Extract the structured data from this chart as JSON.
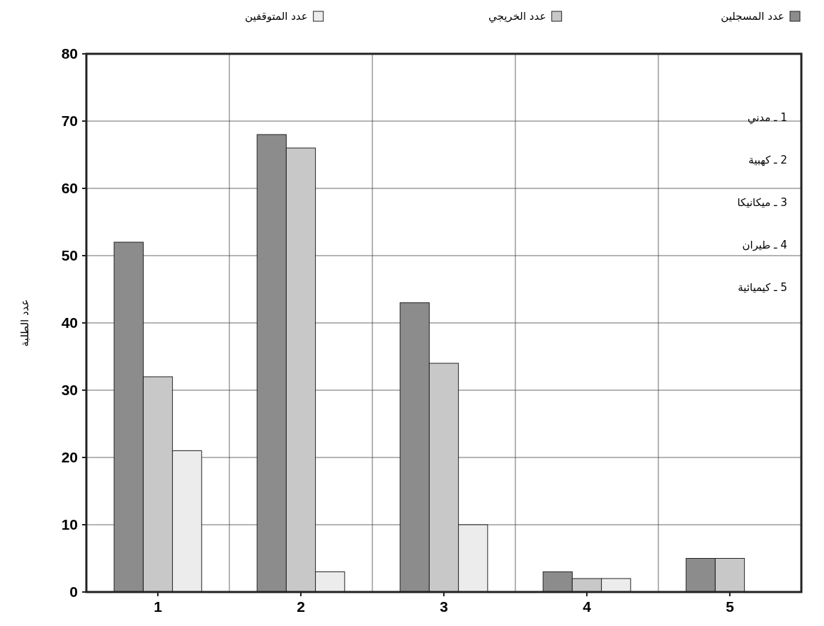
{
  "chart_data": {
    "type": "bar",
    "ylabel": "عدد الطلبة",
    "categories": [
      "1",
      "2",
      "3",
      "4",
      "5"
    ],
    "series": [
      {
        "name": "عدد المسجلين",
        "color": "#8c8c8c",
        "values": [
          52,
          68,
          43,
          3,
          5
        ]
      },
      {
        "name": "عدد الخريجي",
        "color": "#c8c8c8",
        "values": [
          32,
          66,
          34,
          2,
          5
        ]
      },
      {
        "name": "عدد المتوقفين",
        "color": "#ececec",
        "values": [
          21,
          3,
          10,
          2,
          null
        ]
      }
    ],
    "ylim": [
      0,
      80
    ],
    "yticks": [
      0,
      10,
      20,
      30,
      40,
      50,
      60,
      70,
      80
    ],
    "grid": true,
    "legend": "top",
    "annotations": [
      "1 ـ مدني",
      "2 ـ كهبية",
      "3 ـ ميكانيكا",
      "4 ـ طيران",
      "5 ـ كيميائية"
    ]
  }
}
